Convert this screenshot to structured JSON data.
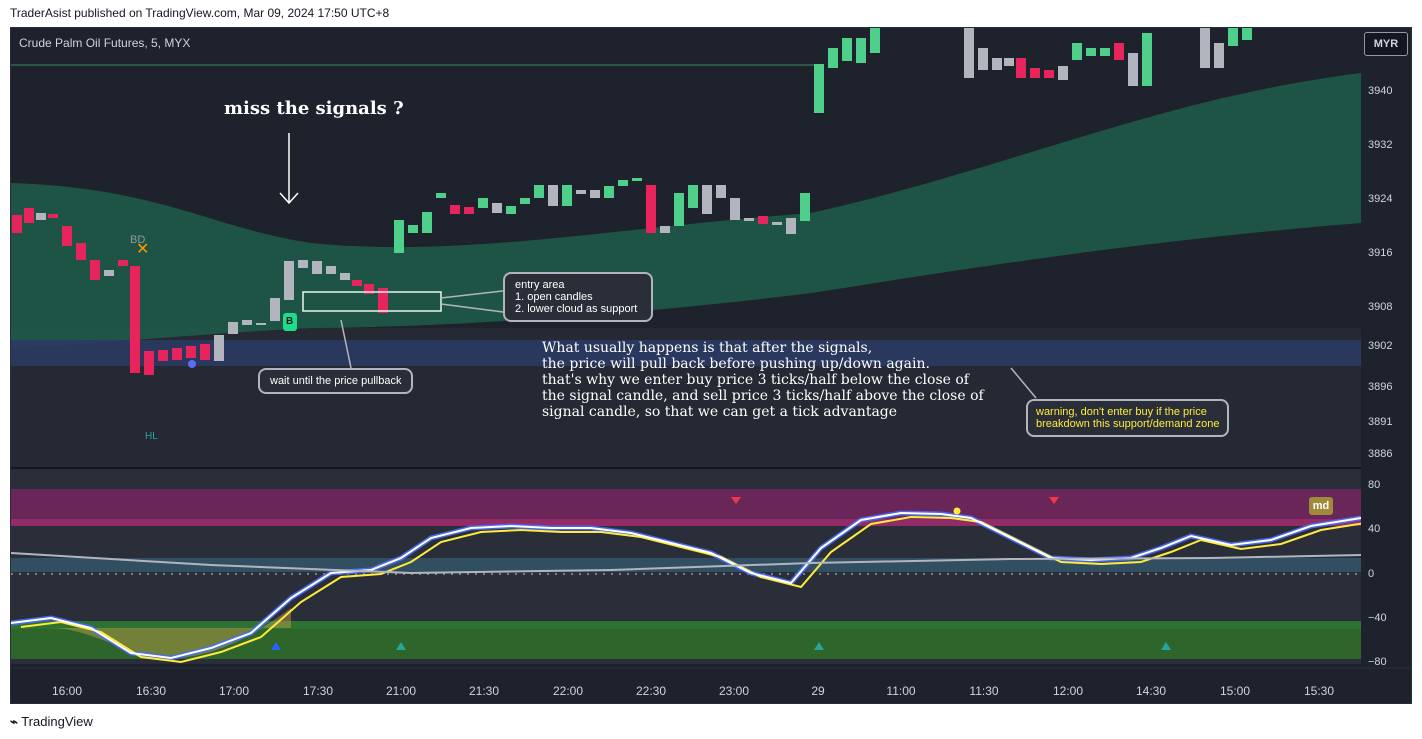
{
  "published": "TraderAsist published on TradingView.com, Mar 09, 2024 17:50 UTC+8",
  "chart_title": "Crude Palm Oil Futures, 5, MYX",
  "currency_button": "MYR",
  "price_axis": [
    "3940",
    "3932",
    "3924",
    "3916",
    "3908",
    "3902",
    "3896",
    "3891",
    "3886"
  ],
  "osc_axis": [
    "80",
    "40",
    "0",
    "−40",
    "−80"
  ],
  "time_axis": [
    "16:00",
    "16:30",
    "17:00",
    "17:30",
    "21:00",
    "21:30",
    "22:00",
    "22:30",
    "23:00",
    "29",
    "11:00",
    "11:30",
    "12:00",
    "14:30",
    "15:00",
    "15:30"
  ],
  "annotations": {
    "headline": "miss the signals ?",
    "entry_area": [
      "entry area",
      "1. open candles",
      "2. lower cloud as support"
    ],
    "wait_note": "wait until the price pullback",
    "explanation": [
      "What usually happens is that after the signals,",
      "the price will pull back before pushing up/down again.",
      "that's why we enter buy price 3 ticks/half below the close of",
      "the signal candle, and sell price 3 ticks/half above the close of",
      "signal candle, so that we can get a tick advantage"
    ],
    "warning": [
      "warning, don't enter buy if the price",
      "breakdown this support/demand zone"
    ],
    "bd_label": "BD",
    "hl_label": "HL",
    "buy_label": "B",
    "md_label": "md"
  },
  "colors": {
    "bull": "#4fd08a",
    "bear": "#e8245c",
    "neutral": "#b2b5be",
    "cloud": "#1e5a48",
    "zone": "#2b3a63"
  },
  "brand": "TradingView"
}
